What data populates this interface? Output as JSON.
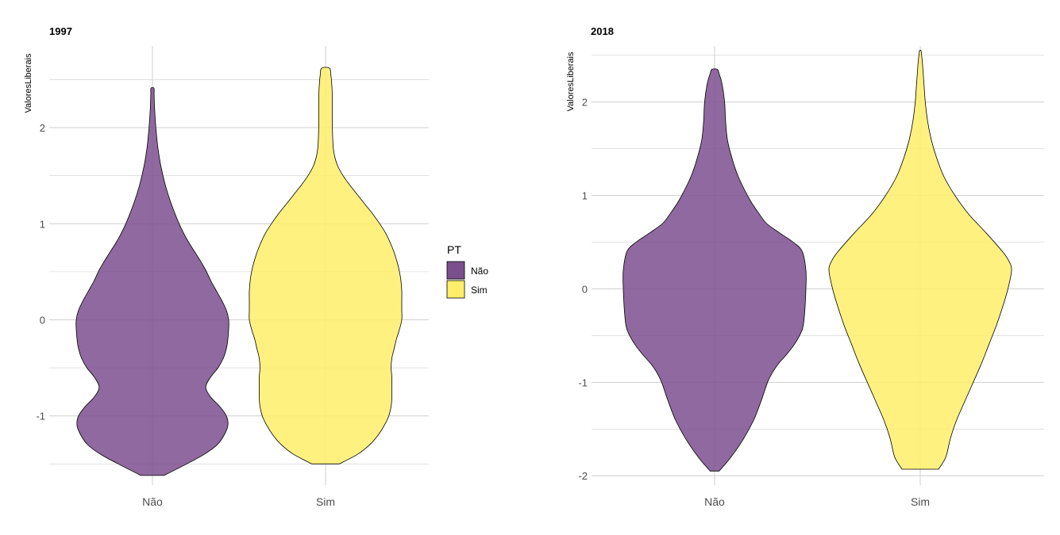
{
  "colors": {
    "nao": "#7B4F8E",
    "sim": "#FFEE6A",
    "outline": "#000000",
    "grid": "#cfcfcf"
  },
  "legend": {
    "title": "PT",
    "items": [
      {
        "label": "Não",
        "color": "#7B4F8E"
      },
      {
        "label": "Sim",
        "color": "#FFEE6A"
      }
    ]
  },
  "chart_data": [
    {
      "type": "violin",
      "title": "1997",
      "xlabel": "",
      "ylabel": "ValoresLiberais",
      "categories": [
        "Não",
        "Sim"
      ],
      "ylim": [
        -1.72,
        2.85
      ],
      "yticks": [
        -1,
        0,
        1,
        2
      ],
      "grid": true,
      "series": [
        {
          "name": "Não",
          "color": "#7B4F8E",
          "opacity": 0.85,
          "density": [
            [
              -1.62,
              0.15
            ],
            [
              -1.5,
              0.45
            ],
            [
              -1.4,
              0.68
            ],
            [
              -1.3,
              0.85
            ],
            [
              -1.2,
              0.94
            ],
            [
              -1.1,
              0.99
            ],
            [
              -1.0,
              0.97
            ],
            [
              -0.9,
              0.88
            ],
            [
              -0.8,
              0.76
            ],
            [
              -0.7,
              0.7
            ],
            [
              -0.6,
              0.76
            ],
            [
              -0.5,
              0.86
            ],
            [
              -0.4,
              0.93
            ],
            [
              -0.3,
              0.97
            ],
            [
              -0.2,
              0.99
            ],
            [
              -0.1,
              1.0
            ],
            [
              0.0,
              1.0
            ],
            [
              0.1,
              0.97
            ],
            [
              0.2,
              0.91
            ],
            [
              0.3,
              0.84
            ],
            [
              0.4,
              0.77
            ],
            [
              0.5,
              0.71
            ],
            [
              0.6,
              0.64
            ],
            [
              0.7,
              0.56
            ],
            [
              0.8,
              0.48
            ],
            [
              0.9,
              0.41
            ],
            [
              1.0,
              0.35
            ],
            [
              1.2,
              0.25
            ],
            [
              1.4,
              0.17
            ],
            [
              1.6,
              0.11
            ],
            [
              1.8,
              0.07
            ],
            [
              2.0,
              0.045
            ],
            [
              2.2,
              0.028
            ],
            [
              2.35,
              0.022
            ],
            [
              2.41,
              0.02
            ]
          ]
        },
        {
          "name": "Sim",
          "color": "#FFEE6A",
          "opacity": 0.85,
          "density": [
            [
              -1.5,
              0.18
            ],
            [
              -1.4,
              0.42
            ],
            [
              -1.3,
              0.58
            ],
            [
              -1.2,
              0.69
            ],
            [
              -1.1,
              0.77
            ],
            [
              -1.0,
              0.83
            ],
            [
              -0.9,
              0.86
            ],
            [
              -0.8,
              0.87
            ],
            [
              -0.7,
              0.87
            ],
            [
              -0.6,
              0.87
            ],
            [
              -0.5,
              0.86
            ],
            [
              -0.4,
              0.87
            ],
            [
              -0.3,
              0.9
            ],
            [
              -0.2,
              0.93
            ],
            [
              -0.1,
              0.97
            ],
            [
              0.0,
              1.0
            ],
            [
              0.1,
              1.0
            ],
            [
              0.2,
              1.0
            ],
            [
              0.3,
              1.0
            ],
            [
              0.4,
              0.99
            ],
            [
              0.5,
              0.97
            ],
            [
              0.6,
              0.94
            ],
            [
              0.7,
              0.9
            ],
            [
              0.8,
              0.85
            ],
            [
              0.9,
              0.79
            ],
            [
              1.0,
              0.71
            ],
            [
              1.1,
              0.62
            ],
            [
              1.2,
              0.52
            ],
            [
              1.3,
              0.42
            ],
            [
              1.4,
              0.32
            ],
            [
              1.5,
              0.23
            ],
            [
              1.6,
              0.16
            ],
            [
              1.7,
              0.12
            ],
            [
              1.8,
              0.1
            ],
            [
              2.0,
              0.09
            ],
            [
              2.2,
              0.09
            ],
            [
              2.4,
              0.085
            ],
            [
              2.55,
              0.07
            ],
            [
              2.62,
              0.05
            ]
          ]
        }
      ]
    },
    {
      "type": "violin",
      "title": "2018",
      "xlabel": "",
      "ylabel": "ValoresLiberais",
      "categories": [
        "Não",
        "Sim"
      ],
      "ylim": [
        -2.1,
        2.6
      ],
      "yticks": [
        -2,
        -1,
        0,
        1,
        2
      ],
      "grid": true,
      "series": [
        {
          "name": "Não",
          "color": "#7B4F8E",
          "opacity": 0.85,
          "density": [
            [
              -1.95,
              0.05
            ],
            [
              -1.8,
              0.18
            ],
            [
              -1.6,
              0.32
            ],
            [
              -1.4,
              0.43
            ],
            [
              -1.2,
              0.51
            ],
            [
              -1.0,
              0.58
            ],
            [
              -0.9,
              0.63
            ],
            [
              -0.8,
              0.7
            ],
            [
              -0.7,
              0.79
            ],
            [
              -0.6,
              0.87
            ],
            [
              -0.5,
              0.93
            ],
            [
              -0.4,
              0.97
            ],
            [
              -0.2,
              0.99
            ],
            [
              0.0,
              1.0
            ],
            [
              0.2,
              1.0
            ],
            [
              0.4,
              0.96
            ],
            [
              0.5,
              0.86
            ],
            [
              0.6,
              0.71
            ],
            [
              0.7,
              0.57
            ],
            [
              0.8,
              0.49
            ],
            [
              0.9,
              0.42
            ],
            [
              1.0,
              0.36
            ],
            [
              1.2,
              0.26
            ],
            [
              1.4,
              0.19
            ],
            [
              1.6,
              0.14
            ],
            [
              1.8,
              0.12
            ],
            [
              2.0,
              0.11
            ],
            [
              2.2,
              0.08
            ],
            [
              2.3,
              0.05
            ],
            [
              2.35,
              0.03
            ]
          ]
        },
        {
          "name": "Sim",
          "color": "#FFEE6A",
          "opacity": 0.85,
          "density": [
            [
              -1.93,
              0.2
            ],
            [
              -1.8,
              0.28
            ],
            [
              -1.6,
              0.33
            ],
            [
              -1.4,
              0.4
            ],
            [
              -1.2,
              0.49
            ],
            [
              -1.0,
              0.58
            ],
            [
              -0.8,
              0.67
            ],
            [
              -0.6,
              0.75
            ],
            [
              -0.4,
              0.83
            ],
            [
              -0.2,
              0.9
            ],
            [
              0.0,
              0.96
            ],
            [
              0.2,
              1.0
            ],
            [
              0.3,
              0.97
            ],
            [
              0.4,
              0.9
            ],
            [
              0.6,
              0.72
            ],
            [
              0.8,
              0.53
            ],
            [
              1.0,
              0.38
            ],
            [
              1.2,
              0.26
            ],
            [
              1.4,
              0.18
            ],
            [
              1.6,
              0.12
            ],
            [
              1.8,
              0.08
            ],
            [
              2.0,
              0.055
            ],
            [
              2.2,
              0.04
            ],
            [
              2.4,
              0.025
            ],
            [
              2.5,
              0.015
            ],
            [
              2.55,
              0.008
            ]
          ]
        }
      ]
    }
  ]
}
